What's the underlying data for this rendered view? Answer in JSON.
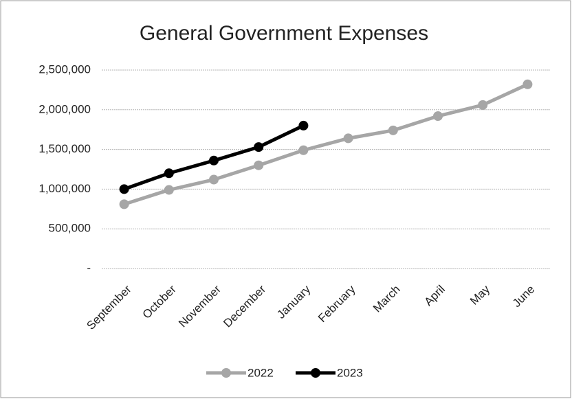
{
  "chart_data": {
    "type": "line",
    "title": "General Government Expenses",
    "categories": [
      "September",
      "October",
      "November",
      "December",
      "January",
      "February",
      "March",
      "April",
      "May",
      "June"
    ],
    "series": [
      {
        "name": "2022",
        "color": "#a6a6a6",
        "values": [
          810000,
          990000,
          1120000,
          1300000,
          1490000,
          1640000,
          1740000,
          1920000,
          2060000,
          2320000
        ]
      },
      {
        "name": "2023",
        "color": "#000000",
        "values": [
          1000000,
          1200000,
          1360000,
          1530000,
          1800000,
          null,
          null,
          null,
          null,
          null
        ]
      }
    ],
    "ylim": [
      0,
      2500000
    ],
    "yticks": [
      {
        "value": 0,
        "label": "-"
      },
      {
        "value": 500000,
        "label": "500,000"
      },
      {
        "value": 1000000,
        "label": "1,000,000"
      },
      {
        "value": 1500000,
        "label": "1,500,000"
      },
      {
        "value": 2000000,
        "label": "2,000,000"
      },
      {
        "value": 2500000,
        "label": "2,500,000"
      }
    ],
    "grid": true,
    "legend": "bottom"
  }
}
